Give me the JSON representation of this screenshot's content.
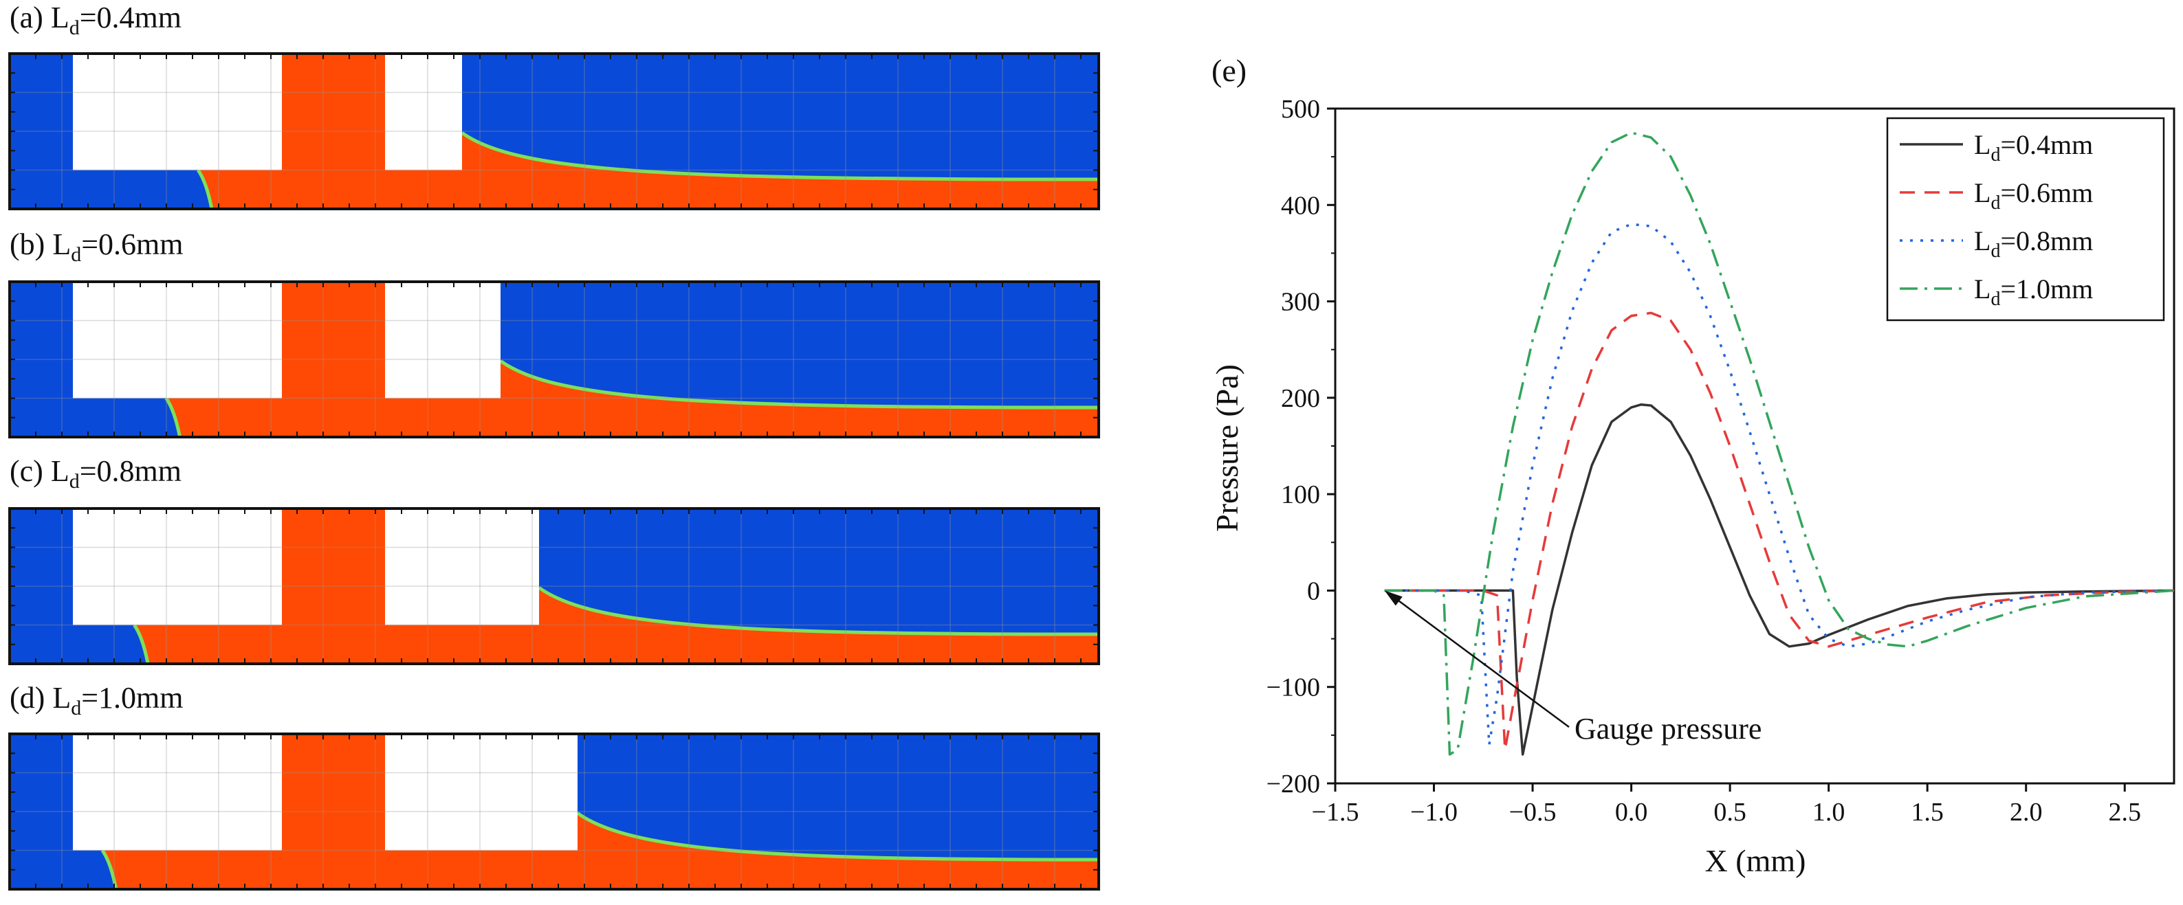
{
  "colors": {
    "background": "#ffffff",
    "blue_fluid": "#0a4ad8",
    "red_fluid": "#ff4a05",
    "interface": "#7ee05a",
    "blocks": "#ffffff",
    "frame": "#111111",
    "series_04": "#333333",
    "series_06": "#e63a3a",
    "series_08": "#2266dd",
    "series_10": "#33a55c"
  },
  "panels": [
    {
      "letter": "(a)",
      "prefix": "L",
      "sub": "d",
      "value": "=0.4mm",
      "ld_mm": 0.4
    },
    {
      "letter": "(b)",
      "prefix": "L",
      "sub": "d",
      "value": "=0.6mm",
      "ld_mm": 0.6
    },
    {
      "letter": "(c)",
      "prefix": "L",
      "sub": "d",
      "value": "=0.8mm",
      "ld_mm": 0.8
    },
    {
      "letter": "(d)",
      "prefix": "L",
      "sub": "d",
      "value": "=1.0mm",
      "ld_mm": 1.0
    }
  ],
  "chart_data": {
    "type": "line",
    "panel_label": "(e)",
    "xlabel": "X (mm)",
    "ylabel": "Pressure (Pa)",
    "xlim": [
      -1.5,
      2.75
    ],
    "ylim": [
      -200,
      500
    ],
    "xticks": [
      -1.5,
      -1.0,
      -0.5,
      0.0,
      0.5,
      1.0,
      1.5,
      2.0,
      2.5
    ],
    "xtick_labels": [
      "−1.5",
      "−1.0",
      "−0.5",
      "0.0",
      "0.5",
      "1.0",
      "1.5",
      "2.0",
      "2.5"
    ],
    "yticks": [
      -200,
      -100,
      0,
      100,
      200,
      300,
      400,
      500
    ],
    "ytick_labels": [
      "−200",
      "−100",
      "0",
      "100",
      "200",
      "300",
      "400",
      "500"
    ],
    "grid": false,
    "legend_position": "top-right",
    "annotation": {
      "text": "Gauge pressure",
      "points_to": [
        -1.25,
        0
      ]
    },
    "series": [
      {
        "name": "L_d=0.4mm",
        "legend_prefix": "L",
        "legend_sub": "d",
        "legend_value": "=0.4mm",
        "style": "solid",
        "color": "#333333",
        "x": [
          -1.25,
          -1.0,
          -0.75,
          -0.6,
          -0.58,
          -0.55,
          -0.5,
          -0.4,
          -0.3,
          -0.2,
          -0.1,
          0.0,
          0.05,
          0.1,
          0.2,
          0.3,
          0.4,
          0.5,
          0.6,
          0.7,
          0.8,
          0.9,
          1.0,
          1.2,
          1.4,
          1.6,
          1.8,
          2.0,
          2.3,
          2.75
        ],
        "y": [
          0,
          0,
          0,
          0,
          -90,
          -170,
          -120,
          -20,
          60,
          130,
          175,
          190,
          193,
          192,
          175,
          140,
          95,
          45,
          -5,
          -45,
          -58,
          -55,
          -46,
          -30,
          -16,
          -8,
          -4,
          -2,
          -1,
          0
        ]
      },
      {
        "name": "L_d=0.6mm",
        "legend_prefix": "L",
        "legend_sub": "d",
        "legend_value": "=0.6mm",
        "style": "dash",
        "color": "#e63a3a",
        "x": [
          -1.25,
          -1.0,
          -0.75,
          -0.68,
          -0.64,
          -0.6,
          -0.5,
          -0.4,
          -0.3,
          -0.2,
          -0.1,
          0.0,
          0.1,
          0.2,
          0.3,
          0.4,
          0.5,
          0.6,
          0.7,
          0.8,
          0.9,
          1.0,
          1.1,
          1.3,
          1.5,
          1.8,
          2.1,
          2.4,
          2.75
        ],
        "y": [
          0,
          0,
          0,
          -5,
          -165,
          -120,
          -10,
          90,
          170,
          230,
          270,
          285,
          288,
          280,
          250,
          205,
          150,
          90,
          30,
          -25,
          -52,
          -58,
          -52,
          -40,
          -28,
          -12,
          -5,
          -2,
          0
        ]
      },
      {
        "name": "L_d=0.8mm",
        "legend_prefix": "L",
        "legend_sub": "d",
        "legend_value": "=0.8mm",
        "style": "dot",
        "color": "#2266dd",
        "x": [
          -1.25,
          -1.0,
          -0.85,
          -0.76,
          -0.72,
          -0.68,
          -0.6,
          -0.5,
          -0.4,
          -0.3,
          -0.2,
          -0.1,
          0.0,
          0.1,
          0.2,
          0.3,
          0.4,
          0.5,
          0.6,
          0.7,
          0.8,
          0.9,
          1.0,
          1.1,
          1.2,
          1.3,
          1.5,
          1.7,
          2.0,
          2.3,
          2.75
        ],
        "y": [
          0,
          0,
          0,
          -5,
          -160,
          -110,
          20,
          130,
          220,
          290,
          340,
          372,
          380,
          378,
          362,
          330,
          285,
          228,
          165,
          100,
          35,
          -25,
          -50,
          -58,
          -55,
          -48,
          -32,
          -20,
          -7,
          -2,
          0
        ]
      },
      {
        "name": "L_d=1.0mm",
        "legend_prefix": "L",
        "legend_sub": "d",
        "legend_value": "=1.0mm",
        "style": "dashdot",
        "color": "#33a55c",
        "x": [
          -1.25,
          -1.0,
          -0.95,
          -0.92,
          -0.88,
          -0.8,
          -0.7,
          -0.6,
          -0.5,
          -0.4,
          -0.3,
          -0.2,
          -0.1,
          0.0,
          0.1,
          0.2,
          0.3,
          0.4,
          0.5,
          0.6,
          0.7,
          0.8,
          0.9,
          1.0,
          1.1,
          1.2,
          1.3,
          1.4,
          1.5,
          1.7,
          2.0,
          2.3,
          2.75
        ],
        "y": [
          0,
          0,
          -5,
          -170,
          -165,
          -70,
          60,
          170,
          260,
          330,
          390,
          435,
          465,
          475,
          470,
          450,
          410,
          360,
          300,
          240,
          175,
          110,
          45,
          -10,
          -40,
          -50,
          -56,
          -58,
          -52,
          -37,
          -18,
          -6,
          0
        ]
      }
    ]
  }
}
